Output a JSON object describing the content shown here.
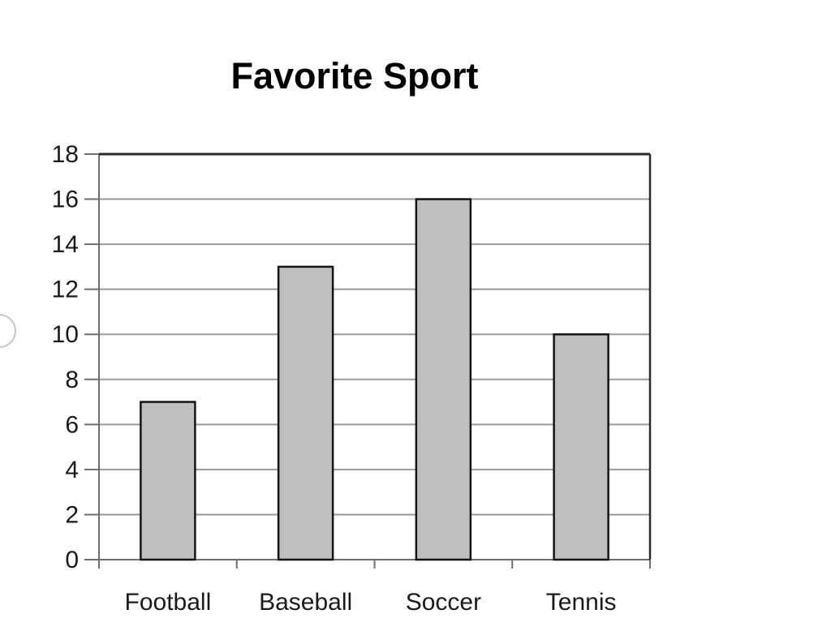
{
  "page": {
    "background": "#ffffff"
  },
  "decorations": {
    "partial_circle": {
      "description": "circle cut off at left edge of screen",
      "stroke_color": "#c6c6c6"
    }
  },
  "chart_data": {
    "type": "bar",
    "title": "Favorite Sport",
    "categories": [
      "Football",
      "Baseball",
      "Soccer",
      "Tennis"
    ],
    "values": [
      7,
      13,
      16,
      10
    ],
    "xlabel": "",
    "ylabel": "",
    "ylim": [
      0,
      18
    ],
    "ytick_step": 2,
    "ytick_labels": [
      "0",
      "2",
      "4",
      "6",
      "8",
      "10",
      "12",
      "14",
      "16",
      "18"
    ],
    "grid": true,
    "legend": false,
    "colors": {
      "bar_fill": "#bfbfbf",
      "bar_border": "#141414",
      "gridline": "#999999",
      "axis": "#6e6e6e",
      "plot_border": "#2b2b2b",
      "tick": "#6e6e6e",
      "label_text": "#1a1a1a",
      "title_text": "#000000"
    }
  }
}
